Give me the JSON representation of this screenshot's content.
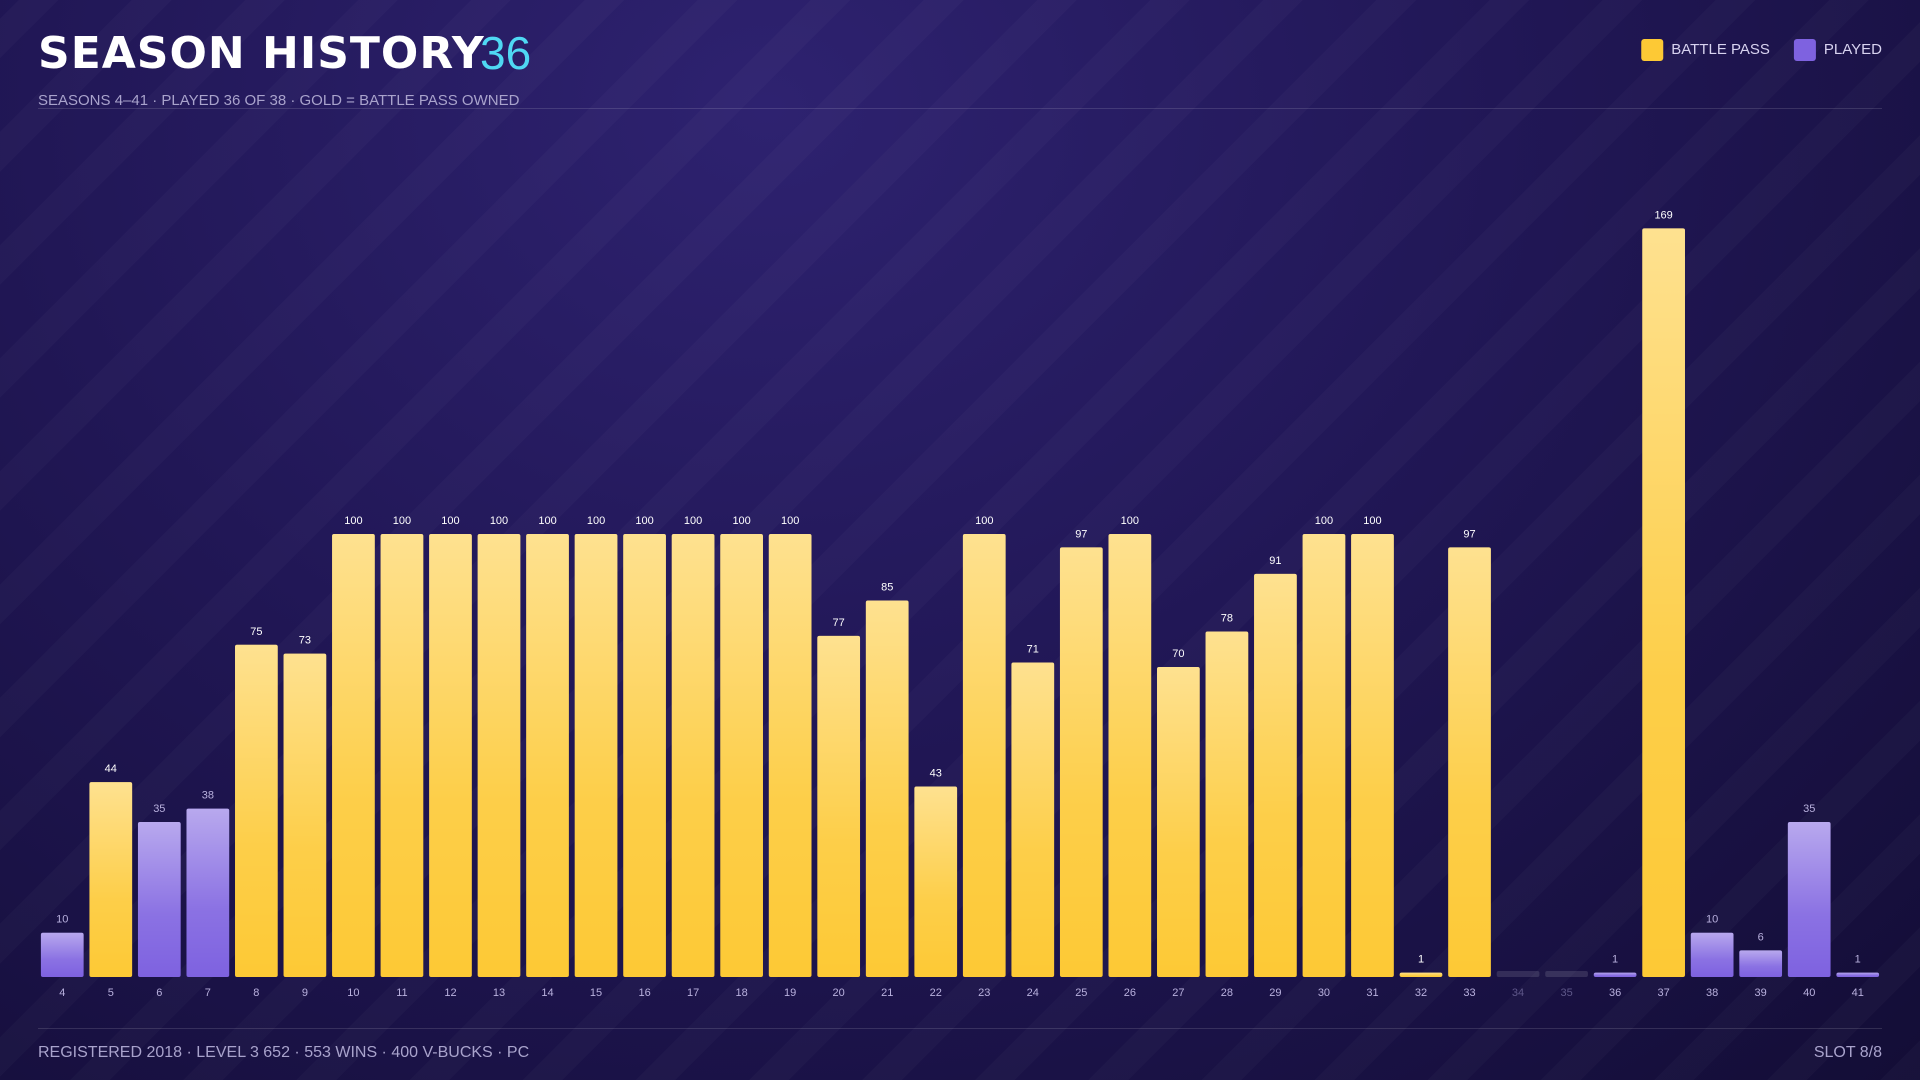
{
  "header": {
    "title": "SEASON HISTORY",
    "count": "36",
    "subtitle": "SEASONS 4–41 · PLAYED 36 OF 38 · GOLD = BATTLE PASS OWNED"
  },
  "chart_data": {
    "type": "bar",
    "categories": [
      "4",
      "5",
      "6",
      "7",
      "8",
      "9",
      "10",
      "11",
      "12",
      "13",
      "14",
      "15",
      "16",
      "17",
      "18",
      "19",
      "20",
      "21",
      "22",
      "23",
      "24",
      "25",
      "26",
      "27",
      "28",
      "29",
      "30",
      "31",
      "32",
      "33",
      "34",
      "35",
      "36",
      "37",
      "38",
      "39",
      "40",
      "41"
    ],
    "series": [
      {
        "name": "BATTLE PASS",
        "color": "#fdc935",
        "values": [
          null,
          44,
          null,
          null,
          75,
          73,
          100,
          100,
          100,
          100,
          100,
          100,
          100,
          100,
          100,
          100,
          77,
          85,
          43,
          100,
          71,
          97,
          100,
          70,
          78,
          91,
          100,
          100,
          1,
          97,
          null,
          null,
          null,
          169,
          null,
          null,
          null,
          null
        ]
      },
      {
        "name": "PLAYED",
        "color": "#7e62e0",
        "values": [
          10,
          null,
          35,
          38,
          null,
          null,
          null,
          null,
          null,
          null,
          null,
          null,
          null,
          null,
          null,
          null,
          null,
          null,
          null,
          null,
          null,
          null,
          null,
          null,
          null,
          null,
          null,
          null,
          null,
          null,
          null,
          null,
          1,
          null,
          10,
          6,
          35,
          1
        ]
      }
    ],
    "ylim": [
      0,
      170
    ],
    "legend": "top-right"
  },
  "footer": {
    "left": "REGISTERED 2018 · LEVEL 3 652 · 553 WINS · 400 V-BUCKS · PC",
    "right": "SLOT 8/8"
  }
}
